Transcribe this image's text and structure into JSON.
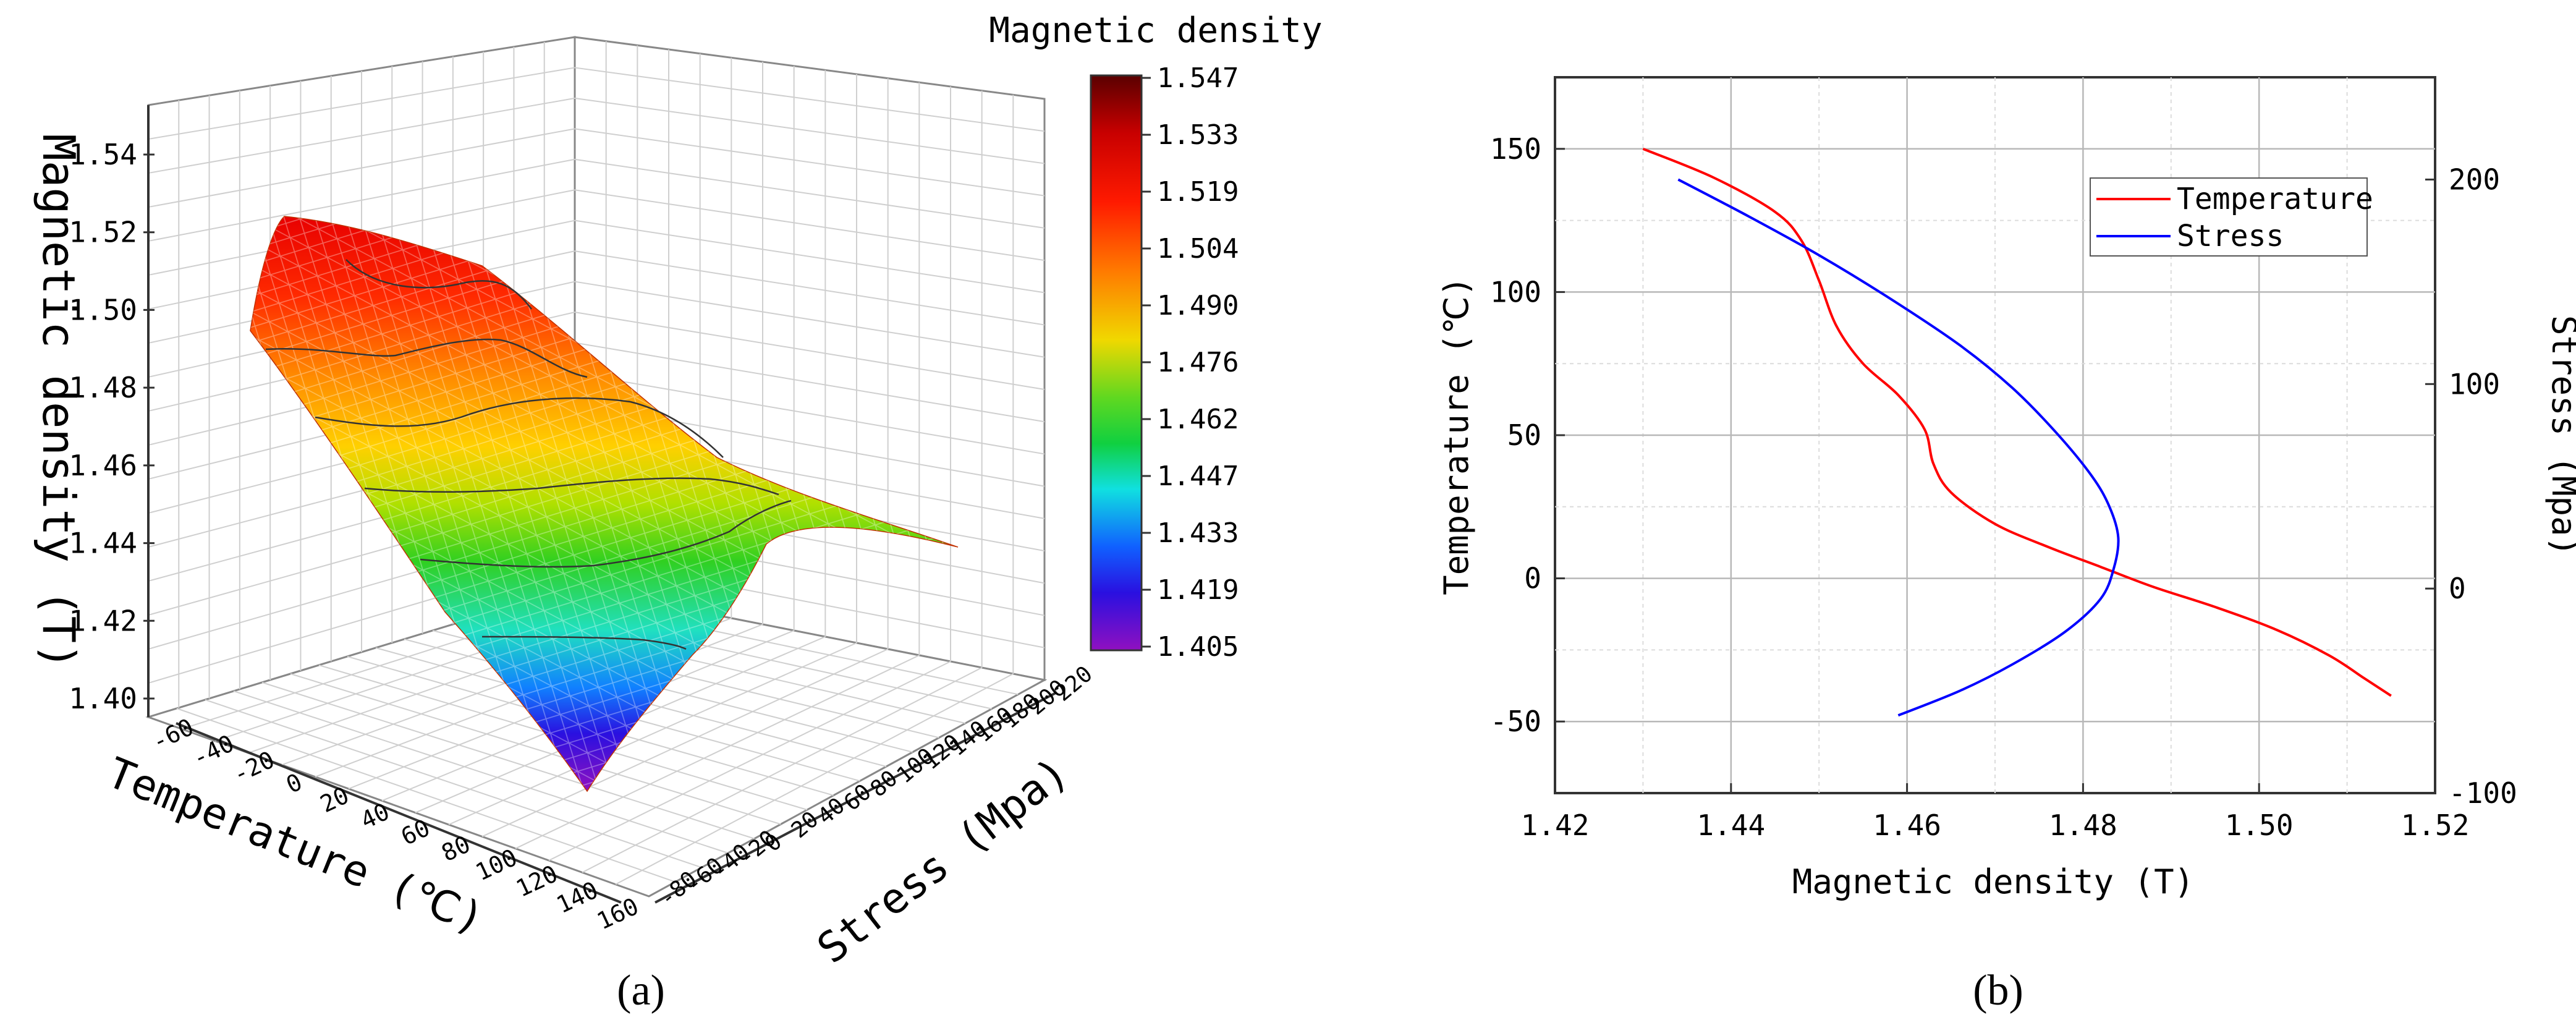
{
  "chart_data": [
    {
      "id": "a",
      "type": "surface3d",
      "panel_label": "(a)",
      "zlabel": "Magnetic density (T)",
      "xlabel": "Temperature (℃)",
      "ylabel": "Stress (Mpa)",
      "z_ticks": [
        "1.40",
        "1.42",
        "1.44",
        "1.46",
        "1.48",
        "1.50",
        "1.52",
        "1.54"
      ],
      "x_ticks": [
        "-60",
        "-40",
        "-20",
        "0",
        "20",
        "40",
        "60",
        "80",
        "100",
        "120",
        "140",
        "160"
      ],
      "y_ticks": [
        "-80",
        "-60",
        "-40",
        "-20",
        "0",
        "20",
        "40",
        "60",
        "80",
        "100",
        "120",
        "140",
        "160",
        "180",
        "200",
        "220"
      ],
      "colorbar": {
        "title": "Magnetic density",
        "ticks": [
          "1.547",
          "1.533",
          "1.519",
          "1.504",
          "1.490",
          "1.476",
          "1.462",
          "1.447",
          "1.433",
          "1.419",
          "1.405"
        ],
        "colors": [
          "#5a0000",
          "#c80000",
          "#ff1a00",
          "#ff6a00",
          "#ffb000",
          "#e8e000",
          "#30d020",
          "#10e0d0",
          "#1060ff",
          "#2a10e0",
          "#9010c0"
        ]
      },
      "surface_levels": [
        1.52,
        1.5,
        1.48,
        1.46,
        1.44,
        1.42,
        1.405
      ]
    },
    {
      "id": "b",
      "type": "line",
      "panel_label": "(b)",
      "xlabel": "Magnetic density (T)",
      "ylabel_left": "Temperature (℃)",
      "ylabel_right": "Stress (Mpa)",
      "xlim": [
        1.42,
        1.52
      ],
      "ylim_left": [
        -75,
        175
      ],
      "ylim_right": [
        -100,
        250
      ],
      "x_ticks": [
        "1.42",
        "1.44",
        "1.46",
        "1.48",
        "1.50",
        "1.52"
      ],
      "y_left_ticks": [
        "-50",
        "0",
        "50",
        "100",
        "150"
      ],
      "y_right_ticks": [
        "-100",
        "0",
        "100",
        "200"
      ],
      "grid": true,
      "legend": {
        "position": "top-right",
        "entries": [
          "Temperature",
          "Stress"
        ]
      },
      "series": [
        {
          "name": "Temperature",
          "axis": "left",
          "color": "#ff0000",
          "x": [
            1.43,
            1.438,
            1.445,
            1.448,
            1.45,
            1.452,
            1.455,
            1.459,
            1.462,
            1.463,
            1.465,
            1.47,
            1.476,
            1.482,
            1.488,
            1.495,
            1.502,
            1.508,
            1.512,
            1.515
          ],
          "y": [
            150,
            140,
            128,
            118,
            104,
            88,
            75,
            64,
            52,
            40,
            30,
            19,
            11,
            4,
            -3,
            -10,
            -18,
            -27,
            -35,
            -41
          ]
        },
        {
          "name": "Stress",
          "axis": "right",
          "color": "#0000ff",
          "x": [
            1.434,
            1.442,
            1.45,
            1.458,
            1.466,
            1.472,
            1.477,
            1.481,
            1.483,
            1.484,
            1.4835,
            1.482,
            1.478,
            1.472,
            1.466,
            1.459
          ],
          "y": [
            200,
            182,
            163,
            142,
            119,
            98,
            76,
            55,
            40,
            25,
            10,
            -5,
            -21,
            -37,
            -50,
            -62
          ]
        }
      ]
    }
  ]
}
